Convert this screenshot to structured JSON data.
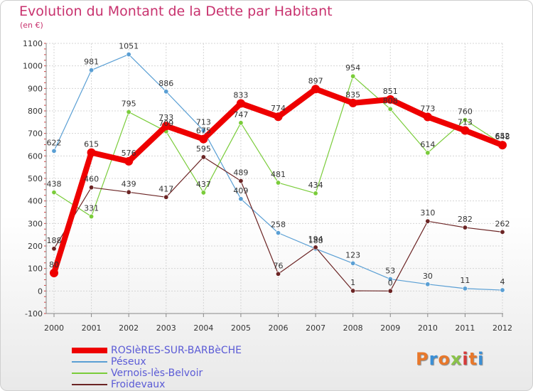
{
  "header": {
    "title": "Evolution du Montant de la Dette par Habitant",
    "subtitle": "(en €)"
  },
  "logo": {
    "text": "Proxiti",
    "colors": [
      "#e8782b",
      "#3a8fd6",
      "#e8782b",
      "#8bc34a",
      "#d63a3a",
      "#e8782b",
      "#3a8fd6"
    ]
  },
  "chart_data": {
    "type": "line",
    "x": [
      2000,
      2001,
      2002,
      2003,
      2004,
      2005,
      2006,
      2007,
      2008,
      2009,
      2010,
      2011,
      2012
    ],
    "ylim": [
      -100,
      1100
    ],
    "yticks": [
      -100,
      0,
      100,
      200,
      300,
      400,
      500,
      600,
      700,
      800,
      900,
      1000,
      1100
    ],
    "grid": true,
    "legend_position": "bottom-left",
    "series": [
      {
        "name": "ROSIèRES-SUR-BARBèCHE",
        "color": "#ee0000",
        "width": "thick",
        "values": [
          80,
          615,
          576,
          733,
          675,
          833,
          774,
          897,
          835,
          851,
          773,
          713,
          648
        ]
      },
      {
        "name": "Péseux",
        "color": "#5a9fd4",
        "width": "thin",
        "values": [
          622,
          981,
          1051,
          886,
          713,
          409,
          258,
          188,
          123,
          53,
          30,
          11,
          4
        ]
      },
      {
        "name": "Vernois-lès-Belvoir",
        "color": "#7acc3a",
        "width": "thin",
        "values": [
          438,
          331,
          795,
          709,
          437,
          747,
          481,
          434,
          954,
          808,
          614,
          760,
          652
        ]
      },
      {
        "name": "Froidevaux",
        "color": "#6b2424",
        "width": "thin",
        "values": [
          188,
          460,
          439,
          417,
          595,
          489,
          76,
          194,
          1,
          0,
          310,
          282,
          262
        ]
      }
    ]
  }
}
